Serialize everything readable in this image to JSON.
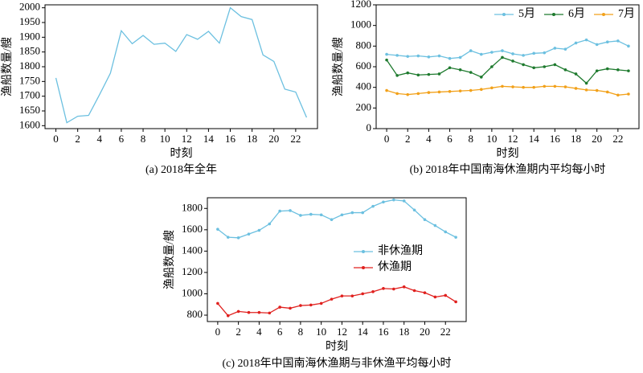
{
  "chart_data": [
    {
      "type": "line",
      "caption": "(a) 2018年全年",
      "xlabel": "时刻",
      "ylabel": "渔船数量/艘",
      "x": [
        0,
        1,
        2,
        3,
        4,
        5,
        6,
        7,
        8,
        9,
        10,
        11,
        12,
        13,
        14,
        15,
        16,
        17,
        18,
        19,
        20,
        21,
        22,
        23
      ],
      "values": [
        1762,
        1610,
        1632,
        1635,
        1705,
        1778,
        1922,
        1878,
        1906,
        1876,
        1880,
        1852,
        1909,
        1893,
        1920,
        1880,
        2000,
        1970,
        1960,
        1840,
        1818,
        1724,
        1714,
        1628
      ],
      "color": "#6cc0e0",
      "marker": false,
      "xlim": [
        -1,
        24
      ],
      "xticks": [
        0,
        2,
        4,
        6,
        8,
        10,
        12,
        14,
        16,
        18,
        20,
        22
      ],
      "ylim": [
        1590,
        2010
      ],
      "yticks": [
        1600,
        1650,
        1700,
        1750,
        1800,
        1850,
        1900,
        1950,
        2000
      ]
    },
    {
      "type": "line",
      "caption": "(b) 2018年中国南海休渔期内平均每小时",
      "xlabel": "时刻",
      "ylabel": "渔船数量/艘",
      "x": [
        0,
        1,
        2,
        3,
        4,
        5,
        6,
        7,
        8,
        9,
        10,
        11,
        12,
        13,
        14,
        15,
        16,
        17,
        18,
        19,
        20,
        21,
        22,
        23
      ],
      "series": [
        {
          "name": "5月",
          "color": "#6cc0e0",
          "values": [
            720,
            710,
            700,
            705,
            695,
            705,
            680,
            690,
            755,
            720,
            740,
            755,
            725,
            710,
            730,
            735,
            780,
            770,
            830,
            860,
            815,
            840,
            850,
            800
          ]
        },
        {
          "name": "6月",
          "color": "#1e7a2e",
          "values": [
            665,
            515,
            540,
            520,
            525,
            530,
            590,
            570,
            545,
            500,
            600,
            690,
            655,
            620,
            590,
            600,
            620,
            570,
            530,
            440,
            560,
            580,
            570,
            560
          ]
        },
        {
          "name": "7月",
          "color": "#f2a11a",
          "values": [
            370,
            340,
            330,
            340,
            350,
            355,
            360,
            365,
            370,
            380,
            395,
            410,
            405,
            400,
            400,
            410,
            410,
            405,
            390,
            375,
            370,
            355,
            325,
            335
          ]
        }
      ],
      "marker": true,
      "legend": "upper right",
      "xlim": [
        -1,
        24
      ],
      "xticks": [
        0,
        2,
        4,
        6,
        8,
        10,
        12,
        14,
        16,
        18,
        20,
        22
      ],
      "ylim": [
        0,
        1200
      ],
      "yticks": [
        0,
        200,
        400,
        600,
        800,
        1000,
        1200
      ]
    },
    {
      "type": "line",
      "caption": "(c) 2018年中国南海休渔期与非休渔平均每小时",
      "xlabel": "时刻",
      "ylabel": "渔船数量/艘",
      "x": [
        0,
        1,
        2,
        3,
        4,
        5,
        6,
        7,
        8,
        9,
        10,
        11,
        12,
        13,
        14,
        15,
        16,
        17,
        18,
        19,
        20,
        21,
        22,
        23
      ],
      "series": [
        {
          "name": "非休渔期",
          "color": "#6cc0e0",
          "values": [
            1605,
            1530,
            1525,
            1560,
            1595,
            1655,
            1775,
            1780,
            1735,
            1745,
            1740,
            1695,
            1740,
            1760,
            1760,
            1820,
            1860,
            1880,
            1870,
            1785,
            1695,
            1640,
            1580,
            1530
          ]
        },
        {
          "name": "休渔期",
          "color": "#e0201e",
          "values": [
            910,
            795,
            835,
            825,
            825,
            820,
            875,
            865,
            890,
            895,
            910,
            950,
            980,
            980,
            1000,
            1020,
            1050,
            1045,
            1065,
            1030,
            1010,
            970,
            985,
            925
          ]
        }
      ],
      "marker": true,
      "legend": "center right",
      "xlim": [
        -1,
        24
      ],
      "xticks": [
        0,
        2,
        4,
        6,
        8,
        10,
        12,
        14,
        16,
        18,
        20,
        22
      ],
      "ylim": [
        740,
        1900
      ],
      "yticks": [
        800,
        1000,
        1200,
        1400,
        1600,
        1800
      ]
    }
  ]
}
